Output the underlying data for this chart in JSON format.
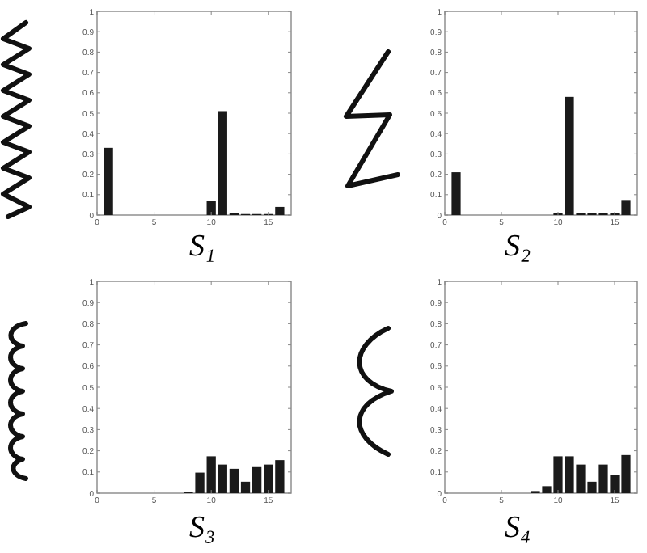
{
  "chart_data": [
    {
      "type": "bar",
      "title": "S₁",
      "x": [
        1,
        2,
        3,
        4,
        5,
        6,
        7,
        8,
        9,
        10,
        11,
        12,
        13,
        14,
        15,
        16
      ],
      "values": [
        0.33,
        0,
        0,
        0,
        0,
        0,
        0,
        0,
        0,
        0.07,
        0.51,
        0.01,
        0.005,
        0.005,
        0.005,
        0.04
      ],
      "color": "#1a1a1a",
      "xlim": [
        0,
        17
      ],
      "xticks": [
        0,
        5,
        10,
        15
      ],
      "ylim": [
        0,
        1
      ],
      "yticks": [
        0,
        0.1,
        0.2,
        0.3,
        0.4,
        0.5,
        0.6,
        0.7,
        0.8,
        0.9,
        1
      ]
    },
    {
      "type": "bar",
      "title": "S₂",
      "x": [
        1,
        2,
        3,
        4,
        5,
        6,
        7,
        8,
        9,
        10,
        11,
        12,
        13,
        14,
        15,
        16
      ],
      "values": [
        0.21,
        0,
        0,
        0,
        0,
        0,
        0,
        0,
        0,
        0.01,
        0.58,
        0.01,
        0.01,
        0.01,
        0.01,
        0.074
      ],
      "color": "#1a1a1a",
      "xlim": [
        0,
        17
      ],
      "xticks": [
        0,
        5,
        10,
        15
      ],
      "ylim": [
        0,
        1
      ],
      "yticks": [
        0,
        0.1,
        0.2,
        0.3,
        0.4,
        0.5,
        0.6,
        0.7,
        0.8,
        0.9,
        1
      ]
    },
    {
      "type": "bar",
      "title": "S₃",
      "x": [
        1,
        2,
        3,
        4,
        5,
        6,
        7,
        8,
        9,
        10,
        11,
        12,
        13,
        14,
        15,
        16
      ],
      "values": [
        0,
        0,
        0,
        0,
        0,
        0,
        0,
        0.005,
        0.097,
        0.174,
        0.135,
        0.115,
        0.054,
        0.123,
        0.135,
        0.156
      ],
      "color": "#1a1a1a",
      "xlim": [
        0,
        17
      ],
      "xticks": [
        0,
        5,
        10,
        15
      ],
      "ylim": [
        0,
        1
      ],
      "yticks": [
        0,
        0.1,
        0.2,
        0.3,
        0.4,
        0.5,
        0.6,
        0.7,
        0.8,
        0.9,
        1
      ]
    },
    {
      "type": "bar",
      "title": "S₄",
      "x": [
        1,
        2,
        3,
        4,
        5,
        6,
        7,
        8,
        9,
        10,
        11,
        12,
        13,
        14,
        15,
        16
      ],
      "values": [
        0,
        0,
        0,
        0,
        0,
        0,
        0,
        0.01,
        0.033,
        0.174,
        0.174,
        0.135,
        0.054,
        0.135,
        0.084,
        0.18
      ],
      "color": "#1a1a1a",
      "xlim": [
        0,
        17
      ],
      "xticks": [
        0,
        5,
        10,
        15
      ],
      "ylim": [
        0,
        1
      ],
      "yticks": [
        0,
        0.1,
        0.2,
        0.3,
        0.4,
        0.5,
        0.6,
        0.7,
        0.8,
        0.9,
        1
      ]
    }
  ]
}
